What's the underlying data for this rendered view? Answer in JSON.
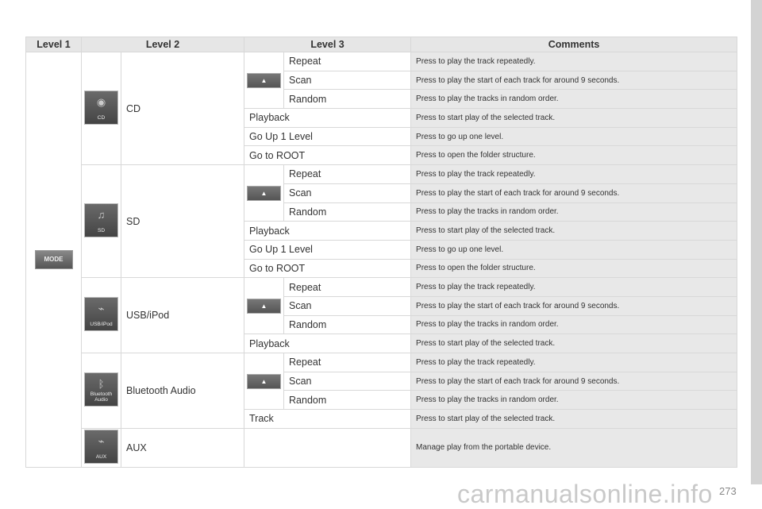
{
  "headers": [
    "Level 1",
    "Level 2",
    "Level 3",
    "Comments"
  ],
  "level1": {
    "button_label": "MODE"
  },
  "groups": [
    {
      "name": "CD",
      "icon": "cd-icon",
      "icon_label": "CD",
      "glyph": "◉",
      "items": [
        {
          "label": "Repeat",
          "comment": "Press to play the track repeatedly."
        },
        {
          "label": "Scan",
          "comment": "Press to play the start of each track for around 9 seconds."
        },
        {
          "label": "Random",
          "comment": "Press to play the tracks in random order."
        },
        {
          "label": "Playback",
          "comment": "Press to start play of the selected track."
        },
        {
          "label": "Go Up 1 Level",
          "comment": "Press to go up one level."
        },
        {
          "label": "Go to ROOT",
          "comment": "Press to open the folder structure."
        }
      ]
    },
    {
      "name": "SD",
      "icon": "sd-card-icon",
      "icon_label": "SD",
      "glyph": "♫",
      "items": [
        {
          "label": "Repeat",
          "comment": "Press to play the track repeatedly."
        },
        {
          "label": "Scan",
          "comment": "Press to play the start of each track for around 9 seconds."
        },
        {
          "label": "Random",
          "comment": "Press to play the tracks in random order."
        },
        {
          "label": "Playback",
          "comment": "Press to start play of the selected track."
        },
        {
          "label": "Go Up 1 Level",
          "comment": "Press to go up one level."
        },
        {
          "label": "Go to ROOT",
          "comment": "Press to open the folder structure."
        }
      ]
    },
    {
      "name": "USB/iPod",
      "icon": "usb-cable-icon",
      "icon_label": "USB/iPod",
      "glyph": "⌁",
      "items": [
        {
          "label": "Repeat",
          "comment": "Press to play the track repeatedly."
        },
        {
          "label": "Scan",
          "comment": "Press to play the start of each track for around 9 seconds."
        },
        {
          "label": "Random",
          "comment": "Press to play the tracks in random order."
        },
        {
          "label": "Playback",
          "comment": "Press to start play of the selected track."
        }
      ]
    },
    {
      "name": "Bluetooth Audio",
      "icon": "bluetooth-icon",
      "icon_label": "Bluetooth Audio",
      "glyph": "ᛒ",
      "items": [
        {
          "label": "Repeat",
          "comment": "Press to play the track repeatedly."
        },
        {
          "label": "Scan",
          "comment": "Press to play the start of each track for around 9 seconds."
        },
        {
          "label": "Random",
          "comment": "Press to play the tracks in random order."
        },
        {
          "label": "Track",
          "comment": "Press to start play of the selected track."
        }
      ]
    },
    {
      "name": "AUX",
      "icon": "aux-cable-icon",
      "icon_label": "AUX",
      "glyph": "⌁",
      "items": [
        {
          "label": "",
          "comment": "Manage play from the portable device."
        }
      ]
    }
  ],
  "sub_button_glyph": "▲",
  "page_number": "273",
  "watermark": "carmanualsonline.info"
}
